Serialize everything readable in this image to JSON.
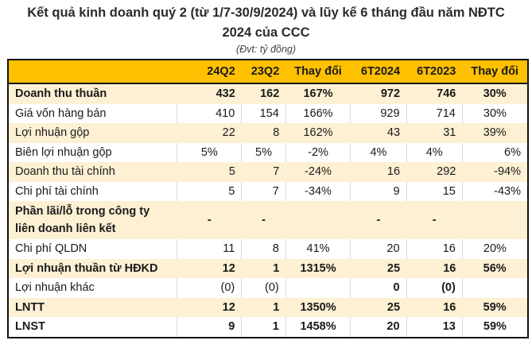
{
  "header": {
    "title_line1": "Kết quả kinh doanh quý 2 (từ 1/7-30/9/2024) và lũy kế 6 tháng đầu năm NĐTC",
    "title_line2": "2024 của CCC",
    "unit": "(Đvt: tỷ đồng)"
  },
  "colors": {
    "header_bg": "#ffc000",
    "shaded_row_bg": "#fdf0d3",
    "border": "#111111"
  },
  "table": {
    "columns": [
      "",
      "24Q2",
      "23Q2",
      "Thay đổi",
      "6T2024",
      "6T2023",
      "Thay đổi"
    ],
    "rows": [
      {
        "label": "Doanh thu thuần",
        "v": [
          "432",
          "162",
          "167%",
          "972",
          "746",
          "30%"
        ]
      },
      {
        "label": "Giá vốn hàng bán",
        "v": [
          "410",
          "154",
          "166%",
          "929",
          "714",
          "30%"
        ]
      },
      {
        "label": "Lợi nhuận gộp",
        "v": [
          "22",
          "8",
          "162%",
          "43",
          "31",
          "39%"
        ]
      },
      {
        "label": "Biên lợi nhuận gộp",
        "v": [
          "5%",
          "5%",
          "-2%",
          "4%",
          "4%",
          "6%"
        ]
      },
      {
        "label": "Doanh thu tài chính",
        "v": [
          "5",
          "7",
          "-24%",
          "16",
          "292",
          "-94%"
        ]
      },
      {
        "label": "Chi phí tài chính",
        "v": [
          "5",
          "7",
          "-34%",
          "9",
          "15",
          "-43%"
        ]
      },
      {
        "label": "Phần lãi/lỗ trong công ty liên doanh liên kết",
        "v": [
          "-",
          "-",
          "",
          "-",
          "-",
          ""
        ]
      },
      {
        "label": "Chi phí QLDN",
        "v": [
          "11",
          "8",
          "41%",
          "20",
          "16",
          "20%"
        ]
      },
      {
        "label": "Lợi nhuận thuần từ HĐKD",
        "v": [
          "12",
          "1",
          "1315%",
          "25",
          "16",
          "56%"
        ]
      },
      {
        "label": "Lợi nhuận khác",
        "v": [
          "(0)",
          "(0)",
          "",
          "0",
          "(0)",
          ""
        ]
      },
      {
        "label": "LNTT",
        "v": [
          "12",
          "1",
          "1350%",
          "25",
          "16",
          "59%"
        ]
      },
      {
        "label": "LNST",
        "v": [
          "9",
          "1",
          "1458%",
          "20",
          "13",
          "59%"
        ]
      }
    ]
  }
}
